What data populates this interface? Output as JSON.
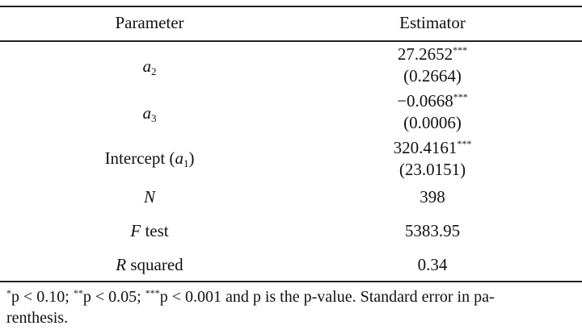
{
  "header": {
    "parameter": "Parameter",
    "estimator": "Estimator"
  },
  "rows": [
    {
      "param_symbol": "a",
      "param_sub": "2",
      "estimate": "27.2652",
      "stars": "***",
      "se": "(0.2664)"
    },
    {
      "param_symbol": "a",
      "param_sub": "3",
      "estimate": "−0.0668",
      "stars": "***",
      "se": "(0.0006)"
    },
    {
      "param_prefix": "Intercept (",
      "param_symbol": "a",
      "param_sub": "1",
      "param_suffix": ")",
      "estimate": "320.4161",
      "stars": "***",
      "se": "(23.0151)"
    },
    {
      "param_symbol": "N",
      "estimate": "398"
    },
    {
      "param_symbol": "F",
      "param_suffix": " test",
      "estimate": "5383.95"
    },
    {
      "param_symbol": "R",
      "param_suffix": " squared",
      "estimate": "0.34"
    }
  ],
  "footnote": {
    "s1": "*",
    "t1": "p < 0.10; ",
    "s2": "**",
    "t2": "p < 0.05; ",
    "s3": "***",
    "t3": "p < 0.001 and p is the p-value. Standard error in pa-",
    "line2": "renthesis."
  }
}
